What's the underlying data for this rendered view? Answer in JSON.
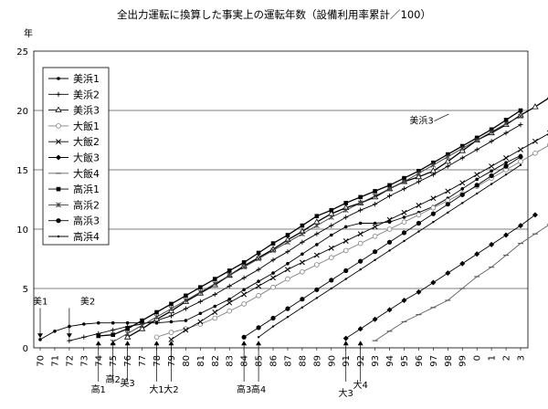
{
  "chart_data": {
    "type": "line",
    "title": "全出力運転に換算した事実上の運転年数（設備利用率累計／100）",
    "ylabel": "年",
    "xlabel": "",
    "ylim": [
      0,
      25
    ],
    "yticks": [
      0,
      5,
      10,
      15,
      20,
      25
    ],
    "x_tick_labels": [
      "70",
      "71",
      "72",
      "73",
      "74",
      "75",
      "76",
      "77",
      "78",
      "79",
      "80",
      "81",
      "82",
      "83",
      "84",
      "85",
      "86",
      "87",
      "88",
      "89",
      "90",
      "91",
      "92",
      "93",
      "94",
      "95",
      "96",
      "97",
      "98",
      "99",
      "0",
      "1",
      "2",
      "3"
    ],
    "grid": "horizontal",
    "legend_position": "top-left",
    "series": [
      {
        "name": "美浜1",
        "color": "#000000",
        "marker": "dot",
        "x_start": 1970,
        "values": [
          0.7,
          1.4,
          1.8,
          2.0,
          2.1,
          2.1,
          2.1,
          2.1,
          2.1,
          2.2,
          2.3,
          2.9,
          3.5,
          4.1,
          4.9,
          5.6,
          6.3,
          7.1,
          7.9,
          8.7,
          9.5,
          10.2,
          10.5,
          10.5,
          10.6,
          11.0,
          11.4,
          11.9,
          12.6,
          13.4,
          14.2,
          14.9,
          15.6,
          16.2
        ]
      },
      {
        "name": "美浜2",
        "color": "#000000",
        "marker": "plus",
        "x_start": 1972,
        "values": [
          0.6,
          0.9,
          1.2,
          1.5,
          1.8,
          2.0,
          2.3,
          2.7,
          3.3,
          3.9,
          4.5,
          5.2,
          5.9,
          6.6,
          7.4,
          8.1,
          8.9,
          9.6,
          10.3,
          11.0,
          11.6,
          12.1,
          12.8,
          13.4,
          14.0,
          14.6,
          15.3,
          16.0,
          16.7,
          17.4,
          18.1,
          18.8
        ]
      },
      {
        "name": "美浜3",
        "color": "#000000",
        "marker": "triangle",
        "x_start": 1976,
        "values": [
          0.9,
          1.6,
          2.4,
          3.1,
          3.9,
          4.6,
          5.3,
          6.1,
          6.9,
          7.6,
          8.3,
          9.1,
          9.8,
          10.6,
          11.3,
          11.8,
          12.2,
          12.7,
          13.4,
          14.0,
          14.4,
          14.9,
          15.7,
          16.6,
          17.5,
          18.1,
          18.8,
          19.6,
          20.3,
          21.1
        ]
      },
      {
        "name": "大飯1",
        "color": "#808080",
        "marker": "circle-open",
        "x_start": 1978,
        "values": [
          0.9,
          1.3,
          1.6,
          2.0,
          2.5,
          3.1,
          3.7,
          4.4,
          5.1,
          5.8,
          6.4,
          7.0,
          7.6,
          8.2,
          8.8,
          9.4,
          10.0,
          10.6,
          11.2,
          11.8,
          12.4,
          13.0,
          13.6,
          14.3,
          15.0,
          15.7,
          16.4,
          17.1
        ]
      },
      {
        "name": "大飯2",
        "color": "#000000",
        "marker": "x",
        "x_start": 1979,
        "values": [
          0.7,
          1.5,
          2.2,
          3.0,
          3.8,
          4.5,
          5.2,
          5.9,
          6.6,
          7.2,
          7.8,
          8.4,
          9.0,
          9.6,
          10.2,
          10.8,
          11.4,
          12.0,
          12.6,
          13.2,
          13.9,
          14.6,
          15.3,
          16.0,
          16.7,
          17.4,
          18.1
        ]
      },
      {
        "name": "大飯3",
        "color": "#000000",
        "marker": "diamond",
        "x_start": 1991,
        "values": [
          0.8,
          1.6,
          2.4,
          3.2,
          4.0,
          4.7,
          5.5,
          6.3,
          7.1,
          7.9,
          8.7,
          9.5,
          10.3,
          11.2
        ]
      },
      {
        "name": "大飯4",
        "color": "#606060",
        "marker": "dash",
        "x_start": 1993,
        "values": [
          0.6,
          1.4,
          2.2,
          2.8,
          3.4,
          4.0,
          5.0,
          6.0,
          6.8,
          7.8,
          8.8,
          9.6,
          10.4
        ]
      },
      {
        "name": "高浜1",
        "color": "#000000",
        "marker": "square",
        "x_start": 1974,
        "values": [
          1.0,
          1.1,
          1.6,
          2.3,
          3.0,
          3.7,
          4.4,
          5.1,
          5.8,
          6.5,
          7.2,
          8.0,
          8.8,
          9.5,
          10.3,
          11.1,
          11.6,
          12.2,
          12.7,
          13.2,
          13.7,
          14.3,
          14.9,
          15.6,
          16.3,
          17.0,
          17.7,
          18.4,
          19.2,
          20.0
        ]
      },
      {
        "name": "高浜2",
        "color": "#404040",
        "marker": "star",
        "x_start": 1975,
        "values": [
          0.5,
          1.2,
          1.9,
          2.6,
          3.3,
          4.0,
          4.7,
          5.4,
          6.1,
          6.8,
          7.5,
          8.2,
          8.9,
          9.6,
          10.3,
          11.0,
          11.6,
          12.2,
          12.8,
          13.4,
          14.0,
          14.7,
          15.4,
          16.1,
          16.8,
          17.5,
          18.2,
          18.9,
          19.5
        ]
      },
      {
        "name": "高浜3",
        "color": "#000000",
        "marker": "dot-big",
        "x_start": 1984,
        "values": [
          0.9,
          1.7,
          2.5,
          3.3,
          4.1,
          4.9,
          5.7,
          6.5,
          7.3,
          8.1,
          8.9,
          9.7,
          10.5,
          11.3,
          12.1,
          12.9,
          13.7,
          14.5,
          15.3,
          16.1
        ]
      },
      {
        "name": "高浜4",
        "color": "#000000",
        "marker": "dot-small",
        "x_start": 1985,
        "values": [
          0.9,
          1.8,
          2.6,
          3.4,
          4.2,
          5.0,
          5.8,
          6.6,
          7.4,
          8.2,
          9.0,
          9.8,
          10.6,
          11.4,
          12.2,
          13.0,
          13.8,
          14.6,
          15.4
        ]
      }
    ],
    "annotations": [
      {
        "text": "美浜3",
        "series": "美浜3",
        "x": 1996,
        "y": 18.8
      },
      {
        "text": "美1",
        "x": 1970,
        "y": 3.2,
        "arrow": "down"
      },
      {
        "text": "美2",
        "x": 1972,
        "y": 3.2,
        "arrow": "down"
      },
      {
        "text": "高1",
        "x": 1974,
        "arrow": "up"
      },
      {
        "text": "高2",
        "x": 1975,
        "arrow": "up"
      },
      {
        "text": "美3",
        "x": 1976,
        "arrow": "up"
      },
      {
        "text": "大1",
        "x": 1978,
        "arrow": "up"
      },
      {
        "text": "大2",
        "x": 1979,
        "arrow": "up"
      },
      {
        "text": "高3",
        "x": 1984,
        "arrow": "up"
      },
      {
        "text": "高4",
        "x": 1985,
        "arrow": "up"
      },
      {
        "text": "大3",
        "x": 1991,
        "arrow": "up"
      },
      {
        "text": "大4",
        "x": 1992,
        "arrow": "up"
      }
    ]
  }
}
